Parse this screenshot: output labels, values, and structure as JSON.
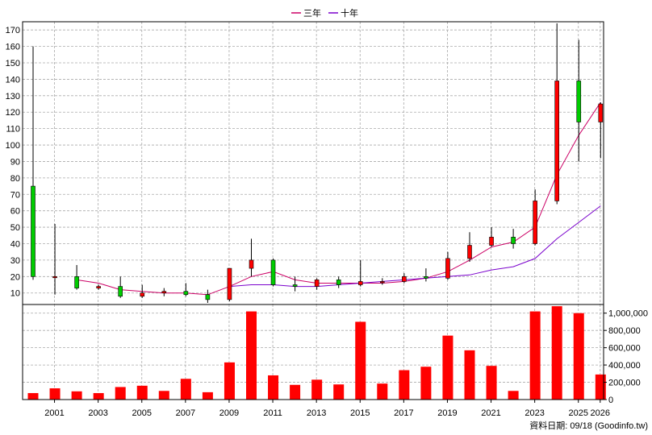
{
  "legend": [
    {
      "label": "三年",
      "color": "#cc0066"
    },
    {
      "label": "十年",
      "color": "#7a00cc"
    }
  ],
  "footer": "資料日期: 09/18  (Goodinfo.tw)",
  "colors": {
    "up": "#ff0000",
    "down": "#00cc00",
    "volume": "#ff0000",
    "grid": "#aaaaaa"
  },
  "chart_data": [
    {
      "type": "candlestick",
      "title": "",
      "y_ticks": [
        10,
        20,
        30,
        40,
        50,
        60,
        70,
        80,
        90,
        100,
        110,
        120,
        130,
        140,
        150,
        160,
        170
      ],
      "ylim": [
        3,
        175
      ],
      "grid": true,
      "legend_position": "top-center",
      "x_ticks": [
        "2001",
        "2003",
        "2005",
        "2007",
        "2009",
        "2011",
        "2013",
        "2015",
        "2017",
        "2019",
        "2021",
        "2023",
        "2025",
        "2026"
      ],
      "candles": [
        {
          "year": 2000,
          "open": 75,
          "high": 160,
          "low": 18,
          "close": 20
        },
        {
          "year": 2001,
          "open": 20,
          "high": 52,
          "low": 9,
          "close": 20
        },
        {
          "year": 2002,
          "open": 20,
          "high": 27,
          "low": 12,
          "close": 13
        },
        {
          "year": 2003,
          "open": 13,
          "high": 15,
          "low": 12,
          "close": 14
        },
        {
          "year": 2004,
          "open": 14,
          "high": 20,
          "low": 7,
          "close": 8
        },
        {
          "year": 2005,
          "open": 8,
          "high": 15,
          "low": 7,
          "close": 10
        },
        {
          "year": 2006,
          "open": 10,
          "high": 13,
          "low": 8,
          "close": 11
        },
        {
          "year": 2007,
          "open": 11,
          "high": 16,
          "low": 8,
          "close": 9
        },
        {
          "year": 2008,
          "open": 9,
          "high": 12,
          "low": 4,
          "close": 6
        },
        {
          "year": 2009,
          "open": 6,
          "high": 25,
          "low": 5,
          "close": 25
        },
        {
          "year": 2010,
          "open": 25,
          "high": 43,
          "low": 20,
          "close": 30
        },
        {
          "year": 2011,
          "open": 30,
          "high": 31,
          "low": 14,
          "close": 15
        },
        {
          "year": 2012,
          "open": 15,
          "high": 20,
          "low": 11,
          "close": 14
        },
        {
          "year": 2013,
          "open": 14,
          "high": 19,
          "low": 12,
          "close": 18
        },
        {
          "year": 2014,
          "open": 18,
          "high": 20,
          "low": 13,
          "close": 15
        },
        {
          "year": 2015,
          "open": 15,
          "high": 30,
          "low": 14,
          "close": 17
        },
        {
          "year": 2016,
          "open": 17,
          "high": 19,
          "low": 15,
          "close": 17
        },
        {
          "year": 2017,
          "open": 17,
          "high": 22,
          "low": 16,
          "close": 20
        },
        {
          "year": 2018,
          "open": 20,
          "high": 25,
          "low": 17,
          "close": 19
        },
        {
          "year": 2019,
          "open": 19,
          "high": 35,
          "low": 18,
          "close": 31
        },
        {
          "year": 2020,
          "open": 31,
          "high": 47,
          "low": 29,
          "close": 39
        },
        {
          "year": 2021,
          "open": 39,
          "high": 50,
          "low": 38,
          "close": 44
        },
        {
          "year": 2022,
          "open": 44,
          "high": 49,
          "low": 37,
          "close": 40
        },
        {
          "year": 2023,
          "open": 40,
          "high": 73,
          "low": 39,
          "close": 66
        },
        {
          "year": 2024,
          "open": 66,
          "high": 174,
          "low": 64,
          "close": 139
        },
        {
          "year": 2025,
          "open": 139,
          "high": 164,
          "low": 90,
          "close": 114
        },
        {
          "year": 2026,
          "open": 114,
          "high": 126,
          "low": 92,
          "close": 125
        }
      ],
      "series": [
        {
          "name": "三年",
          "values": [
            [
              2002,
              18
            ],
            [
              2003,
              16
            ],
            [
              2004,
              12
            ],
            [
              2005,
              11
            ],
            [
              2006,
              10
            ],
            [
              2007,
              10
            ],
            [
              2008,
              9
            ],
            [
              2009,
              14
            ],
            [
              2010,
              20
            ],
            [
              2011,
              23
            ],
            [
              2012,
              18
            ],
            [
              2013,
              16
            ],
            [
              2014,
              16
            ],
            [
              2015,
              16
            ],
            [
              2016,
              16
            ],
            [
              2017,
              17
            ],
            [
              2018,
              19
            ],
            [
              2019,
              23
            ],
            [
              2020,
              30
            ],
            [
              2021,
              38
            ],
            [
              2022,
              41
            ],
            [
              2023,
              50
            ],
            [
              2024,
              82
            ],
            [
              2025,
              106
            ],
            [
              2026,
              126
            ]
          ]
        },
        {
          "name": "十年",
          "values": [
            [
              2009,
              14
            ],
            [
              2010,
              15
            ],
            [
              2011,
              15
            ],
            [
              2012,
              14
            ],
            [
              2013,
              14
            ],
            [
              2014,
              15
            ],
            [
              2015,
              16
            ],
            [
              2016,
              17
            ],
            [
              2017,
              18
            ],
            [
              2018,
              19
            ],
            [
              2019,
              20
            ],
            [
              2020,
              21
            ],
            [
              2021,
              24
            ],
            [
              2022,
              26
            ],
            [
              2023,
              31
            ],
            [
              2024,
              43
            ],
            [
              2025,
              53
            ],
            [
              2026,
              63
            ]
          ]
        }
      ]
    },
    {
      "type": "bar",
      "title": "",
      "y_ticks": [
        0,
        200000,
        400000,
        600000,
        800000,
        1000000
      ],
      "y_tick_labels": [
        "0",
        "200,000",
        "400,000",
        "600,000",
        "800,000",
        "1,000,000"
      ],
      "ylim": [
        0,
        1100000
      ],
      "grid": true,
      "categories": [
        2000,
        2001,
        2002,
        2003,
        2004,
        2005,
        2006,
        2007,
        2008,
        2009,
        2010,
        2011,
        2012,
        2013,
        2014,
        2015,
        2016,
        2017,
        2018,
        2019,
        2020,
        2021,
        2022,
        2023,
        2024,
        2025,
        2026
      ],
      "values": [
        75000,
        130000,
        95000,
        75000,
        145000,
        160000,
        100000,
        240000,
        85000,
        430000,
        1020000,
        280000,
        170000,
        230000,
        175000,
        900000,
        185000,
        340000,
        380000,
        740000,
        570000,
        390000,
        100000,
        1020000,
        1080000,
        1000000,
        290000
      ]
    }
  ]
}
